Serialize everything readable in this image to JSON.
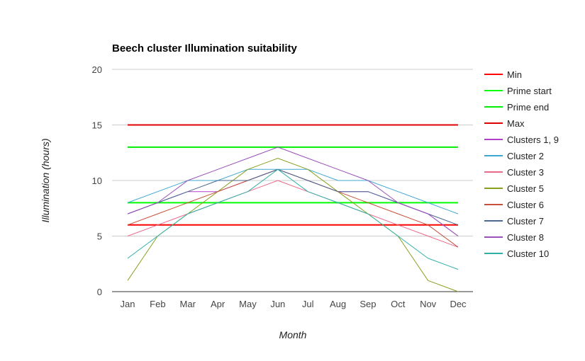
{
  "chart_data": {
    "type": "line",
    "title": "Beech cluster Illumination suitability",
    "xlabel": "Month",
    "ylabel": "Illumination (hours)",
    "categories": [
      "Jan",
      "Feb",
      "Mar",
      "Apr",
      "May",
      "Jun",
      "Jul",
      "Aug",
      "Sep",
      "Oct",
      "Nov",
      "Dec"
    ],
    "ylim": [
      0,
      20
    ],
    "yticks": [
      0,
      5,
      10,
      15,
      20
    ],
    "grid": true,
    "legend": "right",
    "series": [
      {
        "name": "Min",
        "color": "#ff0000",
        "width": 2,
        "values": [
          6,
          6,
          6,
          6,
          6,
          6,
          6,
          6,
          6,
          6,
          6,
          6
        ]
      },
      {
        "name": "Prime start",
        "color": "#00ff00",
        "width": 2,
        "values": [
          8,
          8,
          8,
          8,
          8,
          8,
          8,
          8,
          8,
          8,
          8,
          8
        ]
      },
      {
        "name": "Prime end",
        "color": "#00ee00",
        "width": 2,
        "values": [
          13,
          13,
          13,
          13,
          13,
          13,
          13,
          13,
          13,
          13,
          13,
          13
        ]
      },
      {
        "name": "Max",
        "color": "#e00000",
        "width": 2,
        "values": [
          15,
          15,
          15,
          15,
          15,
          15,
          15,
          15,
          15,
          15,
          15,
          15
        ]
      },
      {
        "name": "Clusters 1, 9",
        "color": "#b040c8",
        "width": 1,
        "values": [
          7,
          8,
          9,
          9,
          10,
          11,
          10,
          9,
          9,
          8,
          7,
          5
        ]
      },
      {
        "name": "Cluster 2",
        "color": "#3fa8d0",
        "width": 1,
        "values": [
          8,
          9,
          10,
          10,
          11,
          11,
          11,
          10,
          10,
          9,
          8,
          7
        ]
      },
      {
        "name": "Cluster 3",
        "color": "#e86a8a",
        "width": 1,
        "values": [
          5,
          6,
          7,
          8,
          9,
          10,
          9,
          8,
          7,
          6,
          5,
          4
        ]
      },
      {
        "name": "Cluster 5",
        "color": "#88a020",
        "width": 1,
        "values": [
          1,
          5,
          7,
          9,
          11,
          12,
          11,
          9,
          7,
          5,
          1,
          0
        ]
      },
      {
        "name": "Cluster 6",
        "color": "#c8503a",
        "width": 1,
        "values": [
          6,
          7,
          8,
          9,
          10,
          11,
          10,
          9,
          8,
          7,
          6,
          4
        ]
      },
      {
        "name": "Cluster 7",
        "color": "#4a6890",
        "width": 1,
        "values": [
          7,
          8,
          9,
          10,
          10,
          11,
          10,
          9,
          9,
          8,
          7,
          6
        ]
      },
      {
        "name": "Cluster 8",
        "color": "#9a50b8",
        "width": 1,
        "values": [
          7,
          8,
          10,
          11,
          12,
          13,
          12,
          11,
          10,
          8,
          7,
          5
        ]
      },
      {
        "name": "Cluster 10",
        "color": "#30b0a8",
        "width": 1,
        "values": [
          3,
          5,
          7,
          8,
          9,
          11,
          9,
          8,
          7,
          5,
          3,
          2
        ]
      }
    ]
  }
}
